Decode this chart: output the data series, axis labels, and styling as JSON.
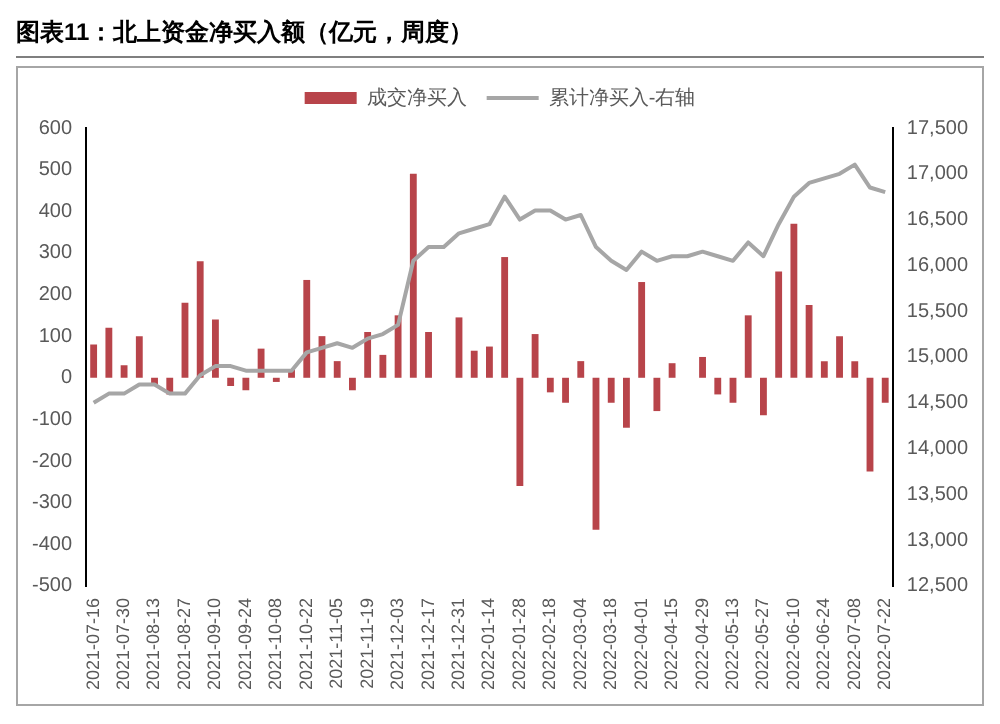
{
  "chart_data": {
    "type": "bar",
    "title": "图表11：北上资金净买入额（亿元，周度）",
    "categories": [
      "2021-07-16",
      null,
      "2021-07-30",
      null,
      "2021-08-13",
      null,
      "2021-08-27",
      null,
      "2021-09-10",
      null,
      "2021-09-24",
      null,
      "2021-10-08",
      null,
      "2021-10-22",
      null,
      "2021-11-05",
      null,
      "2021-11-19",
      null,
      "2021-12-03",
      null,
      "2021-12-17",
      null,
      "2021-12-31",
      null,
      "2022-01-14",
      null,
      "2022-01-28",
      null,
      "2022-02-18",
      null,
      "2022-03-04",
      null,
      "2022-03-18",
      null,
      "2022-04-01",
      null,
      "2022-04-15",
      null,
      "2022-04-29",
      null,
      "2022-05-13",
      null,
      "2022-05-27",
      null,
      "2022-06-10",
      null,
      "2022-06-24",
      null,
      "2022-07-08",
      null,
      "2022-07-22"
    ],
    "series": [
      {
        "name": "成交净买入",
        "color": "#b8444a",
        "values": [
          80,
          120,
          30,
          100,
          -20,
          -40,
          180,
          280,
          140,
          -20,
          -30,
          70,
          -10,
          20,
          235,
          100,
          40,
          -30,
          110,
          55,
          150,
          490,
          110,
          0,
          145,
          65,
          75,
          290,
          -260,
          105,
          -35,
          -60,
          40,
          -365,
          -60,
          -120,
          230,
          -80,
          35,
          0,
          50,
          -40,
          -60,
          150,
          -90,
          255,
          370,
          175,
          40,
          100,
          40,
          -225,
          -60
        ]
      },
      {
        "name": "累计净买入-右轴",
        "type": "line",
        "axis": "y2",
        "color": "#a6a6a6",
        "values": [
          14500,
          14600,
          14600,
          14700,
          14700,
          14600,
          14600,
          14800,
          14900,
          14900,
          14850,
          14850,
          14850,
          14850,
          15050,
          15100,
          15150,
          15100,
          15200,
          15250,
          15350,
          16050,
          16200,
          16200,
          16350,
          16400,
          16450,
          16750,
          16500,
          16600,
          16600,
          16500,
          16550,
          16200,
          16050,
          15950,
          16150,
          16050,
          16100,
          16100,
          16150,
          16100,
          16050,
          16250,
          16100,
          16450,
          16750,
          16900,
          16950,
          17000,
          17100,
          16850,
          16800
        ]
      }
    ],
    "ylim": [
      -500,
      600
    ],
    "yticks": [
      -500,
      -400,
      -300,
      -200,
      -100,
      0,
      100,
      200,
      300,
      400,
      500,
      600
    ],
    "y2lim": [
      12500,
      17500
    ],
    "y2ticks": [
      {
        "value": 12500,
        "label": "12,500"
      },
      {
        "value": 13000,
        "label": "13,000"
      },
      {
        "value": 13500,
        "label": "13,500"
      },
      {
        "value": 14000,
        "label": "14,000"
      },
      {
        "value": 14500,
        "label": "14,500"
      },
      {
        "value": 15000,
        "label": "15,000"
      },
      {
        "value": 15500,
        "label": "15,500"
      },
      {
        "value": 16000,
        "label": "16,000"
      },
      {
        "value": 16500,
        "label": "16,500"
      },
      {
        "value": 17000,
        "label": "17,000"
      },
      {
        "value": 17500,
        "label": "17,500"
      }
    ],
    "grid": false,
    "legend": "top",
    "marker": "none",
    "line_style": "solid"
  }
}
